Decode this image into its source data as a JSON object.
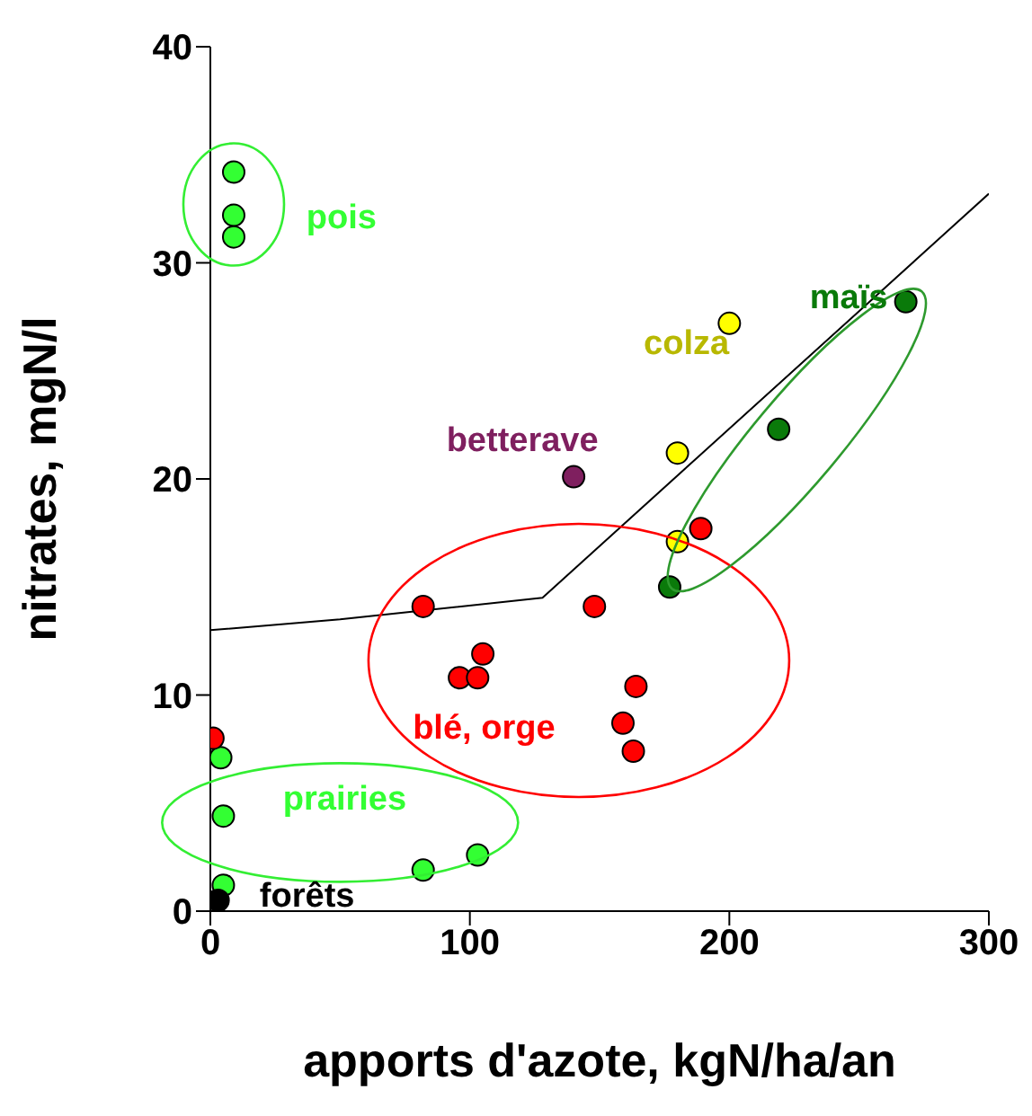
{
  "chart_data": {
    "type": "scatter",
    "xlabel": "apports d'azote, kgN/ha/an",
    "ylabel": "nitrates, mgN/l",
    "xlim": [
      0,
      300
    ],
    "xticks": [
      0,
      100,
      200,
      300
    ],
    "ylim": [
      0,
      40
    ],
    "yticks": [
      0,
      10,
      20,
      30,
      40
    ],
    "grid": false,
    "legend": false,
    "marker": "circle",
    "series": [
      {
        "name": "pois",
        "color": "#33ff33",
        "x": [
          9,
          9,
          9
        ],
        "values": [
          34.2,
          32.2,
          31.2
        ]
      },
      {
        "name": "prairies",
        "color": "#33ff33",
        "x": [
          4,
          5,
          5,
          82,
          103
        ],
        "values": [
          7.1,
          4.4,
          1.2,
          1.9,
          2.6
        ]
      },
      {
        "name": "forêts",
        "color": "#000000",
        "x": [
          3
        ],
        "values": [
          0.5
        ]
      },
      {
        "name": "blé, orge",
        "color": "#ff0000",
        "x": [
          1,
          82,
          96,
          103,
          105,
          148,
          164,
          159,
          163,
          189
        ],
        "values": [
          8.0,
          14.1,
          10.8,
          10.8,
          11.9,
          14.1,
          10.4,
          8.7,
          7.4,
          17.7
        ]
      },
      {
        "name": "betterave",
        "color": "#7f1f5f",
        "x": [
          140
        ],
        "values": [
          20.1
        ]
      },
      {
        "name": "colza",
        "color": "#ffff00",
        "x": [
          200,
          180,
          180
        ],
        "values": [
          27.2,
          21.2,
          17.1
        ]
      },
      {
        "name": "maïs",
        "color": "#0a7a0a",
        "x": [
          268,
          219,
          177
        ],
        "values": [
          28.2,
          22.3,
          15.0
        ]
      },
      {
        "type": "line",
        "marker": "none",
        "color": "#000000",
        "x": [
          0,
          50,
          128,
          300
        ],
        "values": [
          13.0,
          13.5,
          14.5,
          33.2
        ]
      }
    ]
  }
}
